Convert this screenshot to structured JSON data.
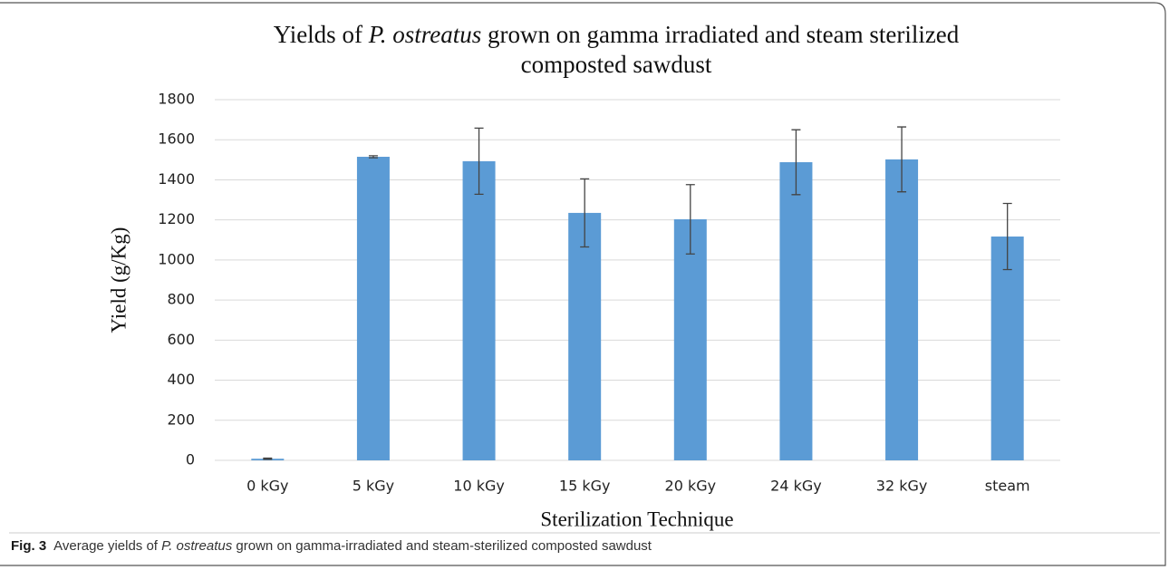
{
  "chart_data": {
    "type": "bar",
    "title": {
      "before": "Yields of ",
      "italic": "P. ostreatus",
      "after": " grown on gamma irradiated and steam sterilized composted sawdust"
    },
    "categories": [
      "0 kGy",
      "5 kGy",
      "10 kGy",
      "15 kGy",
      "20 kGy",
      "24 kGy",
      "32 kGy",
      "steam"
    ],
    "values": [
      8,
      1515,
      1493,
      1235,
      1203,
      1488,
      1502,
      1117
    ],
    "errors": [
      3,
      5,
      165,
      170,
      173,
      162,
      162,
      165
    ],
    "color": "#5b9bd5",
    "ylim": [
      0,
      1800
    ],
    "yticks": [
      0,
      200,
      400,
      600,
      800,
      1000,
      1200,
      1400,
      1600,
      1800
    ],
    "grid": true,
    "y_label": "Yield (g/Kg)",
    "x_label": "Sterilization Technique"
  },
  "caption": {
    "label": "Fig. 3",
    "before": "Average yields of ",
    "italic": "P. ostreatus",
    "after": " grown on gamma-irradiated and steam-sterilized composted sawdust"
  }
}
